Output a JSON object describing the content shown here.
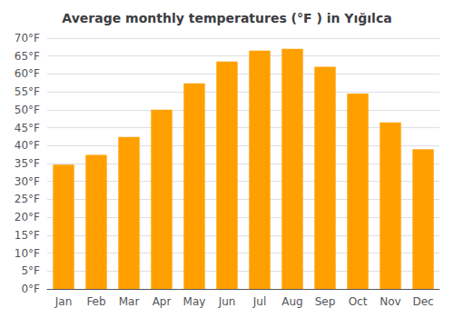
{
  "chart_data": {
    "type": "bar",
    "title": "Average monthly temperatures (°F ) in Yığılca",
    "categories": [
      "Jan",
      "Feb",
      "Mar",
      "Apr",
      "May",
      "Jun",
      "Jul",
      "Aug",
      "Sep",
      "Oct",
      "Nov",
      "Dec"
    ],
    "values": [
      34.7,
      37.4,
      42.4,
      50.0,
      57.4,
      63.5,
      66.5,
      67.0,
      62.0,
      54.5,
      46.5,
      39.0
    ],
    "color": "#FFA000",
    "ylim": [
      0,
      70
    ],
    "yticks": [
      {
        "value": 0,
        "label": "0°F"
      },
      {
        "value": 5,
        "label": "5°F"
      },
      {
        "value": 10,
        "label": "10°F"
      },
      {
        "value": 15,
        "label": "15°F"
      },
      {
        "value": 20,
        "label": "20°F"
      },
      {
        "value": 25,
        "label": "25°F"
      },
      {
        "value": 30,
        "label": "30°F"
      },
      {
        "value": 35,
        "label": "35°F"
      },
      {
        "value": 40,
        "label": "40°F"
      },
      {
        "value": 45,
        "label": "45°F"
      },
      {
        "value": 50,
        "label": "50°F"
      },
      {
        "value": 55,
        "label": "55°F"
      },
      {
        "value": 60,
        "label": "60°F"
      },
      {
        "value": 65,
        "label": "65°F"
      },
      {
        "value": 70,
        "label": "70°F"
      }
    ],
    "grid": true
  }
}
